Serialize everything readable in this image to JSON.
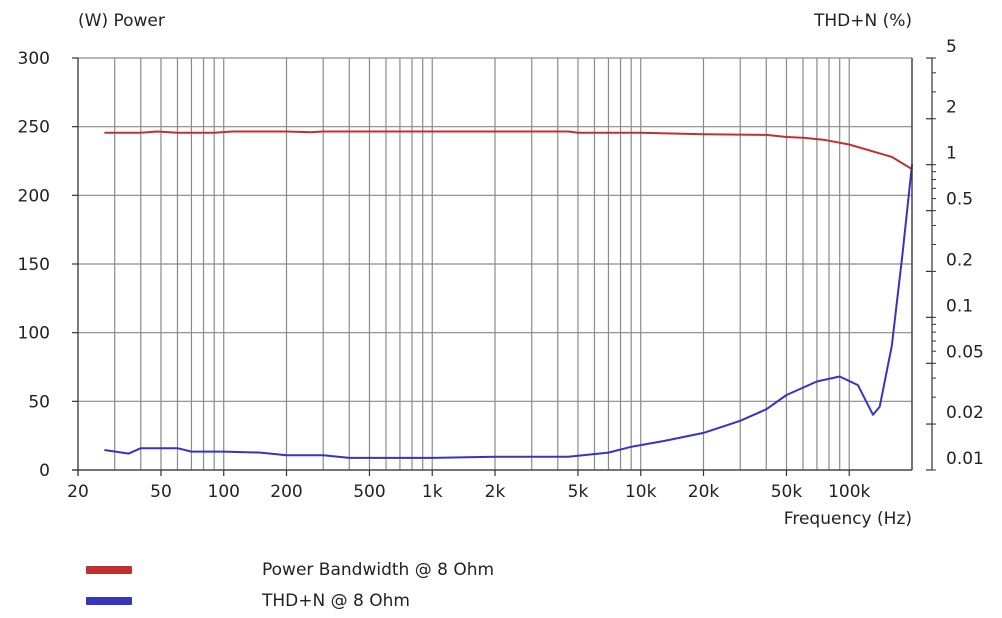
{
  "chart_data": {
    "type": "line",
    "left_axis_label": "(W)  Power",
    "right_axis_label": "THD+N  (%)",
    "xlabel": "Frequency  (Hz)",
    "x_scale": "log",
    "xlim": [
      20,
      200000
    ],
    "x_ticks": [
      {
        "value": 20,
        "label": "20"
      },
      {
        "value": 50,
        "label": "50"
      },
      {
        "value": 100,
        "label": "100"
      },
      {
        "value": 200,
        "label": "200"
      },
      {
        "value": 500,
        "label": "500"
      },
      {
        "value": 1000,
        "label": "1k"
      },
      {
        "value": 2000,
        "label": "2k"
      },
      {
        "value": 5000,
        "label": "5k"
      },
      {
        "value": 10000,
        "label": "10k"
      },
      {
        "value": 20000,
        "label": "20k"
      },
      {
        "value": 50000,
        "label": "50k"
      },
      {
        "value": 100000,
        "label": "100k"
      }
    ],
    "left_ylim": [
      0,
      300
    ],
    "left_y_ticks": [
      "0",
      "50",
      "100",
      "150",
      "200",
      "250",
      "300"
    ],
    "right_y_scale": "log",
    "right_ylim": [
      0.01,
      5
    ],
    "right_y_ticks": [
      {
        "value": 0.01,
        "label": "0.01"
      },
      {
        "value": 0.02,
        "label": "0.02"
      },
      {
        "value": 0.05,
        "label": "0.05"
      },
      {
        "value": 0.1,
        "label": "0.1"
      },
      {
        "value": 0.2,
        "label": "0.2"
      },
      {
        "value": 0.5,
        "label": "0.5"
      },
      {
        "value": 1,
        "label": "1"
      },
      {
        "value": 2,
        "label": "2"
      },
      {
        "value": 5,
        "label": "5"
      }
    ],
    "grid": true,
    "series": [
      {
        "name": "Power Bandwidth @ 8 Ohm",
        "axis": "left",
        "color": "#c03030",
        "points": [
          [
            27,
            245.5
          ],
          [
            40,
            245.5
          ],
          [
            48,
            246.5
          ],
          [
            60,
            245.5
          ],
          [
            90,
            245.5
          ],
          [
            110,
            246.5
          ],
          [
            150,
            246.5
          ],
          [
            200,
            246.5
          ],
          [
            260,
            246
          ],
          [
            300,
            246.5
          ],
          [
            500,
            246.5
          ],
          [
            1000,
            246.5
          ],
          [
            2000,
            246.5
          ],
          [
            4500,
            246.5
          ],
          [
            5000,
            245.5
          ],
          [
            10000,
            245.5
          ],
          [
            20000,
            244.5
          ],
          [
            40000,
            244
          ],
          [
            50000,
            242.5
          ],
          [
            60000,
            242
          ],
          [
            75000,
            240.5
          ],
          [
            100000,
            237
          ],
          [
            130000,
            232
          ],
          [
            160000,
            228
          ],
          [
            200000,
            219
          ]
        ]
      },
      {
        "name": "THD+N @ 8 Ohm",
        "axis": "right",
        "color": "#3535c0",
        "points": [
          [
            27,
            0.0135
          ],
          [
            35,
            0.0128
          ],
          [
            40,
            0.0139
          ],
          [
            60,
            0.0139
          ],
          [
            70,
            0.0132
          ],
          [
            100,
            0.0132
          ],
          [
            150,
            0.013
          ],
          [
            200,
            0.0125
          ],
          [
            300,
            0.0125
          ],
          [
            400,
            0.012
          ],
          [
            1000,
            0.012
          ],
          [
            2000,
            0.0122
          ],
          [
            4500,
            0.0122
          ],
          [
            7000,
            0.013
          ],
          [
            9000,
            0.0142
          ],
          [
            13000,
            0.0155
          ],
          [
            20000,
            0.0175
          ],
          [
            30000,
            0.021
          ],
          [
            40000,
            0.025
          ],
          [
            50000,
            0.031
          ],
          [
            70000,
            0.038
          ],
          [
            90000,
            0.041
          ],
          [
            110000,
            0.036
          ],
          [
            130000,
            0.023
          ],
          [
            140000,
            0.026
          ],
          [
            160000,
            0.065
          ],
          [
            180000,
            0.26
          ],
          [
            200000,
            1.0
          ]
        ]
      }
    ]
  }
}
